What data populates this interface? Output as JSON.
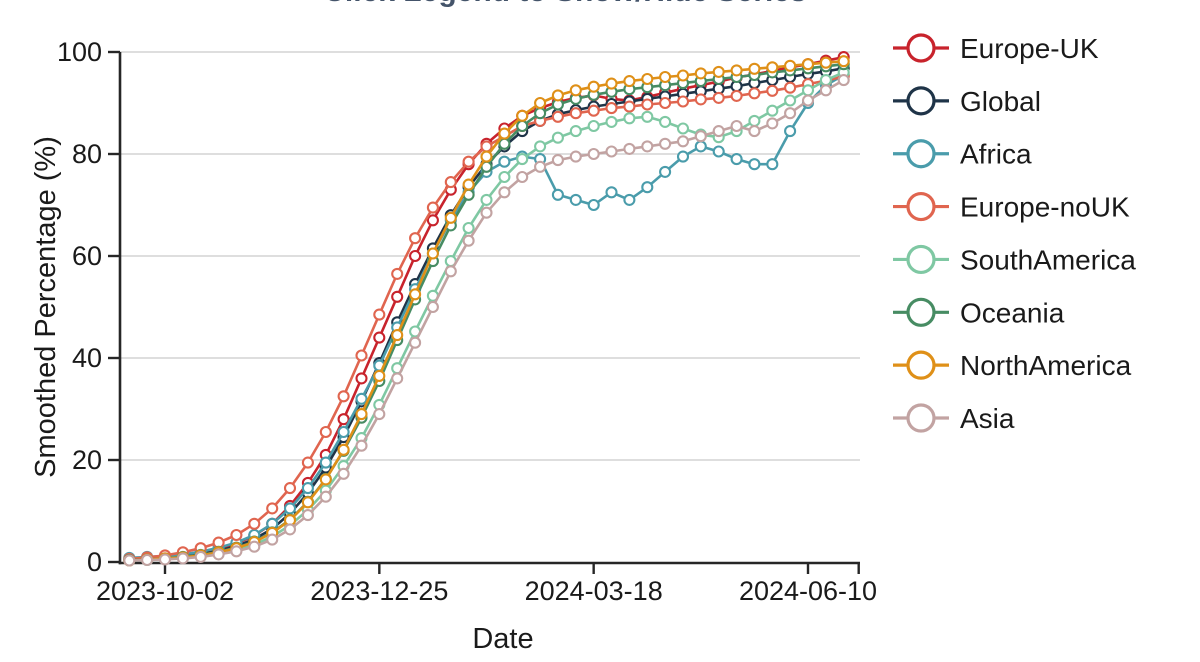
{
  "title": "Click Legend to Show/Hide Series",
  "chart_data": {
    "type": "line",
    "title": "Click Legend to Show/Hide Series",
    "xlabel": "Date",
    "ylabel": "Smoothed Percentage (%)",
    "x_tick_labels": [
      "2023-10-02",
      "2023-12-25",
      "2024-03-18",
      "2024-06-10"
    ],
    "y_ticks": [
      0,
      20,
      40,
      60,
      80,
      100
    ],
    "ylim": [
      0,
      100
    ],
    "grid": true,
    "legend_position": "right",
    "marker": "open-circle",
    "x": [
      "2023-09-18",
      "2023-09-25",
      "2023-10-02",
      "2023-10-09",
      "2023-10-16",
      "2023-10-23",
      "2023-10-30",
      "2023-11-06",
      "2023-11-13",
      "2023-11-20",
      "2023-11-27",
      "2023-12-04",
      "2023-12-11",
      "2023-12-18",
      "2023-12-25",
      "2024-01-01",
      "2024-01-08",
      "2024-01-15",
      "2024-01-22",
      "2024-01-29",
      "2024-02-05",
      "2024-02-12",
      "2024-02-19",
      "2024-02-26",
      "2024-03-04",
      "2024-03-11",
      "2024-03-18",
      "2024-03-25",
      "2024-04-01",
      "2024-04-08",
      "2024-04-15",
      "2024-04-22",
      "2024-04-29",
      "2024-05-06",
      "2024-05-13",
      "2024-05-20",
      "2024-05-27",
      "2024-06-03",
      "2024-06-10",
      "2024-06-17",
      "2024-06-24"
    ],
    "series": [
      {
        "name": "Europe-UK",
        "color": "#c8232c",
        "values": [
          0.4,
          0.6,
          0.8,
          1.2,
          1.8,
          2.5,
          3.6,
          5.2,
          7.5,
          11,
          15.5,
          21,
          28,
          36,
          44,
          52,
          60,
          67,
          73,
          78,
          82,
          85,
          87.5,
          89,
          90.2,
          91,
          91.5,
          90.8,
          90.5,
          91.2,
          92,
          92.8,
          93.5,
          94.2,
          95,
          95.6,
          96.3,
          97,
          97.6,
          98.3,
          99
        ]
      },
      {
        "name": "Global",
        "color": "#1f3448",
        "values": [
          0.4,
          0.5,
          0.7,
          1.0,
          1.5,
          2.2,
          3.1,
          4.5,
          6.5,
          9.5,
          13.5,
          18.5,
          24.5,
          31.5,
          39,
          47,
          54.5,
          61.5,
          68,
          73.5,
          78,
          81.5,
          84.5,
          86.5,
          87.8,
          88.6,
          89.3,
          89.8,
          90.3,
          90.8,
          91.3,
          91.8,
          92.3,
          92.8,
          93.3,
          93.9,
          94.5,
          95.1,
          95.7,
          96.2,
          96.8
        ]
      },
      {
        "name": "Africa",
        "color": "#4a9cab",
        "values": [
          0.8,
          1.0,
          1.2,
          1.5,
          2.0,
          2.8,
          3.8,
          5.3,
          7.5,
          10.5,
          14.5,
          19.5,
          25.5,
          32,
          38.5,
          46,
          53.5,
          60.5,
          67,
          72.5,
          76.5,
          78.5,
          79.5,
          79,
          72,
          71,
          70,
          72.5,
          71,
          73.5,
          76.5,
          79.5,
          81.5,
          80.5,
          79,
          78,
          78,
          84.5,
          90,
          93.5,
          95.5
        ]
      },
      {
        "name": "Europe-noUK",
        "color": "#e0654f",
        "values": [
          0.6,
          0.9,
          1.3,
          1.9,
          2.7,
          3.8,
          5.3,
          7.5,
          10.5,
          14.5,
          19.5,
          25.5,
          32.5,
          40.5,
          48.5,
          56.5,
          63.5,
          69.5,
          74.5,
          78.5,
          81.5,
          83.5,
          85.5,
          86.5,
          87.3,
          88,
          88.5,
          89,
          89.3,
          89.7,
          90,
          90.3,
          90.7,
          91,
          91.4,
          91.9,
          92.4,
          93,
          93.7,
          94.4,
          95.2
        ]
      },
      {
        "name": "SouthAmerica",
        "color": "#7fc8a3",
        "values": [
          0.3,
          0.4,
          0.6,
          0.8,
          1.2,
          1.7,
          2.4,
          3.4,
          5,
          7.2,
          10.2,
          14,
          18.8,
          24.3,
          30.8,
          38,
          45.2,
          52.2,
          59,
          65.5,
          71,
          75.5,
          79,
          81.5,
          83.2,
          84.5,
          85.5,
          86.3,
          87,
          87.3,
          86.3,
          85,
          83.8,
          83.3,
          84.5,
          86.5,
          88.5,
          90.5,
          92.5,
          94.5,
          96
        ]
      },
      {
        "name": "Oceania",
        "color": "#478c63",
        "values": [
          0.4,
          0.5,
          0.7,
          1.0,
          1.4,
          2.0,
          2.8,
          4.0,
          5.8,
          8.3,
          11.8,
          16.3,
          21.8,
          28.3,
          35.5,
          43.5,
          51.5,
          59,
          66,
          72,
          77.5,
          82,
          85.5,
          88,
          89.7,
          90.8,
          91.6,
          92.2,
          92.7,
          93.1,
          93.5,
          93.9,
          94.3,
          94.7,
          95.1,
          95.5,
          96,
          96.4,
          96.8,
          97.2,
          97.6
        ]
      },
      {
        "name": "NorthAmerica",
        "color": "#df9018",
        "values": [
          0.3,
          0.5,
          0.7,
          0.9,
          1.3,
          1.9,
          2.7,
          3.9,
          5.7,
          8.2,
          11.7,
          16.2,
          22,
          29,
          36.5,
          44.5,
          52.5,
          60.5,
          67.5,
          74,
          79.5,
          84,
          87.5,
          90,
          91.5,
          92.5,
          93.2,
          93.8,
          94.3,
          94.7,
          95.1,
          95.4,
          95.8,
          96.1,
          96.4,
          96.7,
          97,
          97.3,
          97.6,
          97.9,
          98.2
        ]
      },
      {
        "name": "Asia",
        "color": "#c2a3a2",
        "values": [
          0.3,
          0.4,
          0.5,
          0.7,
          1.0,
          1.5,
          2.1,
          3.0,
          4.4,
          6.4,
          9.2,
          12.8,
          17.3,
          22.8,
          29,
          36,
          43,
          50,
          57,
          63,
          68.5,
          72.5,
          75.5,
          77.5,
          78.8,
          79.5,
          80,
          80.5,
          81,
          81.5,
          82,
          82.5,
          83.5,
          84.5,
          85.5,
          84.5,
          86,
          88,
          90.5,
          92.5,
          94.5
        ]
      }
    ]
  },
  "colors": {
    "axis": "#262626",
    "grid": "#c9c9c9",
    "title": "#44546a",
    "text": "#1a1a1a",
    "marker_fill": "#ffffff"
  }
}
